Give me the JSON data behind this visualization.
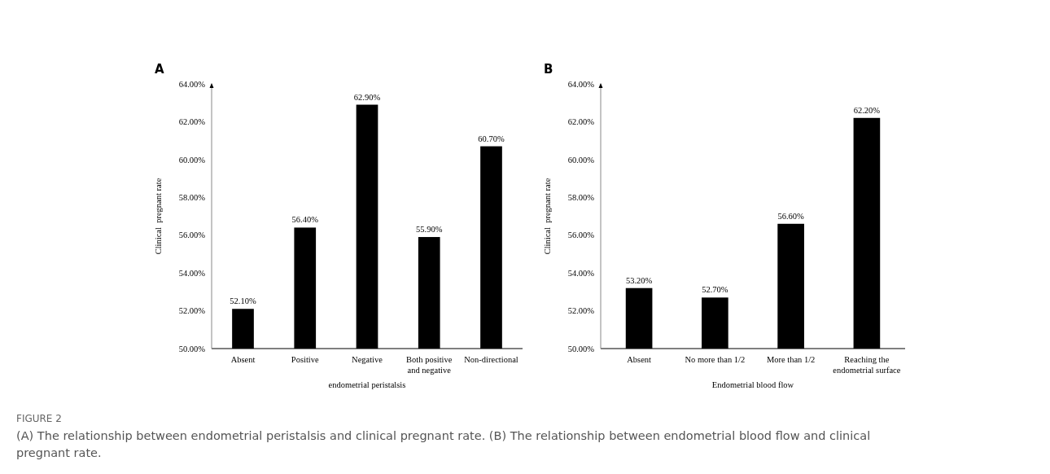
{
  "chart_data": [
    {
      "type": "bar",
      "title": "A",
      "xlabel": "endometrial peristalsis",
      "ylabel": "Clinical  pregnant rate",
      "categories": [
        "Absent",
        "Positive",
        "Negative",
        "Both positive and negative",
        "Non-directional"
      ],
      "values": [
        52.1,
        56.4,
        62.9,
        55.9,
        60.7
      ],
      "color": "#000000",
      "value_labels": [
        "52.10%",
        "56.40%",
        "62.90%",
        "55.90%",
        "60.70%"
      ],
      "ylim": [
        50,
        64
      ],
      "yticks": [
        {
          "value": 50,
          "label": "50.00%"
        },
        {
          "value": 52,
          "label": "52.00%"
        },
        {
          "value": 54,
          "label": "54.00%"
        },
        {
          "value": 56,
          "label": "56.00%"
        },
        {
          "value": 58,
          "label": "58.00%"
        },
        {
          "value": 60,
          "label": "60.00%"
        },
        {
          "value": 62,
          "label": "62.00%"
        },
        {
          "value": 64,
          "label": "64.00%"
        }
      ],
      "grid": false,
      "annotations": [
        "FIGURE 2",
        "(A) The relationship between endometrial peristalsis and clinical pregnant rate. (B) The relationship between endometrial blood flow and clinical pregnant rate."
      ]
    },
    {
      "type": "bar",
      "title": "B",
      "xlabel": "Endometrial blood flow",
      "ylabel": "Clinical  pregnant rate",
      "categories": [
        "Absent",
        "No more than 1/2",
        "More than 1/2",
        "Reaching the endometrial surface"
      ],
      "values": [
        53.2,
        52.7,
        56.6,
        62.2
      ],
      "color": "#000000",
      "value_labels": [
        "53.20%",
        "52.70%",
        "56.60%",
        "62.20%"
      ],
      "ylim": [
        50,
        64
      ],
      "yticks": [
        {
          "value": 50,
          "label": "50.00%"
        },
        {
          "value": 52,
          "label": "52.00%"
        },
        {
          "value": 54,
          "label": "54.00%"
        },
        {
          "value": 56,
          "label": "56.00%"
        },
        {
          "value": 58,
          "label": "58.00%"
        },
        {
          "value": 60,
          "label": "60.00%"
        },
        {
          "value": 62,
          "label": "62.00%"
        },
        {
          "value": 64,
          "label": "64.00%"
        }
      ],
      "grid": false
    }
  ]
}
